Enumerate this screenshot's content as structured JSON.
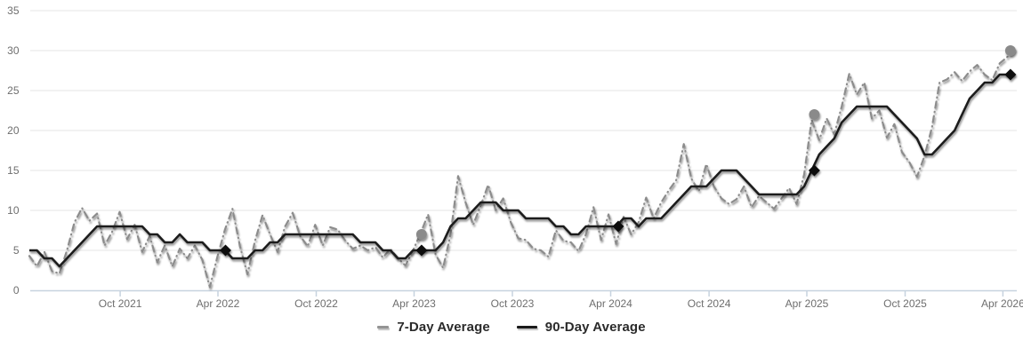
{
  "legend": {
    "items": [
      {
        "label": "7-Day Average"
      },
      {
        "label": "90-Day Average"
      }
    ]
  },
  "chart_data": {
    "type": "line",
    "title": "",
    "xlabel": "",
    "ylabel": "",
    "grid": "horizontal",
    "legend_position": "bottom",
    "colors": {
      "grid": "#e4e4e4",
      "axis": "#c7d3df",
      "axis_label": "#6e6e6e"
    },
    "x_axis": {
      "start_date": "2021-04-15",
      "interval_days": 14,
      "tick_labels": [
        {
          "date": "2021-10-01",
          "label": "Oct 2021"
        },
        {
          "date": "2022-04-01",
          "label": "Apr 2022"
        },
        {
          "date": "2022-10-01",
          "label": "Oct 2022"
        },
        {
          "date": "2023-04-01",
          "label": "Apr 2023"
        },
        {
          "date": "2023-10-01",
          "label": "Oct 2023"
        },
        {
          "date": "2024-04-01",
          "label": "Apr 2024"
        },
        {
          "date": "2024-10-01",
          "label": "Oct 2024"
        },
        {
          "date": "2025-04-01",
          "label": "Apr 2025"
        },
        {
          "date": "2025-10-01",
          "label": "Oct 2025"
        },
        {
          "date": "2026-04-01",
          "label": "Apr 2026"
        }
      ]
    },
    "y_axis": {
      "min": 0,
      "max": 35,
      "tick_step": 5,
      "ticks": [
        0,
        5,
        10,
        15,
        20,
        25,
        30,
        35
      ]
    },
    "series": [
      {
        "name": "7-Day Average",
        "style": "dash-dot",
        "color": "#8c8c8c",
        "line_width": 2.2,
        "values": [
          4.3,
          3.0,
          4.8,
          2.4,
          2.1,
          5.0,
          8.5,
          10.3,
          8.7,
          9.6,
          5.6,
          7.3,
          9.8,
          6.4,
          8.2,
          4.8,
          6.8,
          3.5,
          5.6,
          3.0,
          5.2,
          4.0,
          5.6,
          3.8,
          0.4,
          4.2,
          7.6,
          10.2,
          5.5,
          2.0,
          6.2,
          9.4,
          7.0,
          4.8,
          8.0,
          9.7,
          6.8,
          5.5,
          8.2,
          5.6,
          7.9,
          7.6,
          6.2,
          5.2,
          5.6,
          5.0,
          5.4,
          4.1,
          5.2,
          4.0,
          3.1,
          5.0,
          7.1,
          9.5,
          4.5,
          2.8,
          7.0,
          14.3,
          11.0,
          8.2,
          10.6,
          13.2,
          10.0,
          11.5,
          8.5,
          6.5,
          6.3,
          5.2,
          5.0,
          4.2,
          7.5,
          6.2,
          6.0,
          4.9,
          7.0,
          10.4,
          6.3,
          9.5,
          5.8,
          9.2,
          7.0,
          8.5,
          11.6,
          9.0,
          11.0,
          12.5,
          13.8,
          18.3,
          14.0,
          12.4,
          15.8,
          13.0,
          11.5,
          10.8,
          11.4,
          13.0,
          10.4,
          11.8,
          11.0,
          10.2,
          11.5,
          12.8,
          10.8,
          14.5,
          21.3,
          18.8,
          21.5,
          19.5,
          23.0,
          27.1,
          24.5,
          26.0,
          21.5,
          22.5,
          19.1,
          20.8,
          17.3,
          16.0,
          14.2,
          16.8,
          20.4,
          26.0,
          26.4,
          27.3,
          26.2,
          27.4,
          28.2,
          27.0,
          26.3,
          28.4,
          29.2,
          30.1
        ]
      },
      {
        "name": "90-Day Average",
        "style": "solid",
        "color": "#1c1c1c",
        "line_width": 2.6,
        "values": [
          5,
          5,
          4,
          4,
          3,
          4,
          5,
          6,
          7,
          8,
          8,
          8,
          8,
          8,
          8,
          8,
          7,
          7,
          6,
          6,
          7,
          6,
          6,
          6,
          5,
          5,
          5,
          4,
          4,
          4,
          5,
          5,
          6,
          6,
          7,
          7,
          7,
          7,
          7,
          7,
          7,
          7,
          7,
          7,
          6,
          6,
          6,
          5,
          5,
          4,
          4,
          5,
          5,
          5,
          5,
          6,
          8,
          9,
          9,
          10,
          11,
          11,
          11,
          10,
          10,
          10,
          9,
          9,
          9,
          9,
          8,
          8,
          7,
          7,
          8,
          8,
          8,
          8,
          8,
          9,
          9,
          8,
          9,
          9,
          9,
          10,
          11,
          12,
          13,
          13,
          13,
          14,
          15,
          15,
          15,
          14,
          13,
          12,
          12,
          12,
          12,
          12,
          12,
          13,
          15,
          17,
          18,
          19,
          21,
          22,
          23,
          23,
          23,
          23,
          23,
          22,
          21,
          20,
          19,
          17,
          17,
          18,
          19,
          20,
          22,
          24,
          25,
          26,
          26,
          27,
          27,
          27
        ]
      }
    ],
    "markers": [
      {
        "shape": "diamond",
        "series": "90-Day Average",
        "color": "#111111",
        "points": [
          {
            "date": "2022-04-15",
            "value": 5
          },
          {
            "date": "2023-04-15",
            "value": 5
          },
          {
            "date": "2024-04-15",
            "value": 8
          },
          {
            "date": "2025-04-15",
            "value": 15
          },
          {
            "date": "2026-04-15",
            "value": 27
          }
        ]
      },
      {
        "shape": "circle",
        "series": "7-Day Average",
        "color": "#8a8a8a",
        "points": [
          {
            "date": "2023-04-15",
            "value": 7
          },
          {
            "date": "2025-04-15",
            "value": 22
          },
          {
            "date": "2026-04-15",
            "value": 30
          }
        ]
      }
    ]
  }
}
